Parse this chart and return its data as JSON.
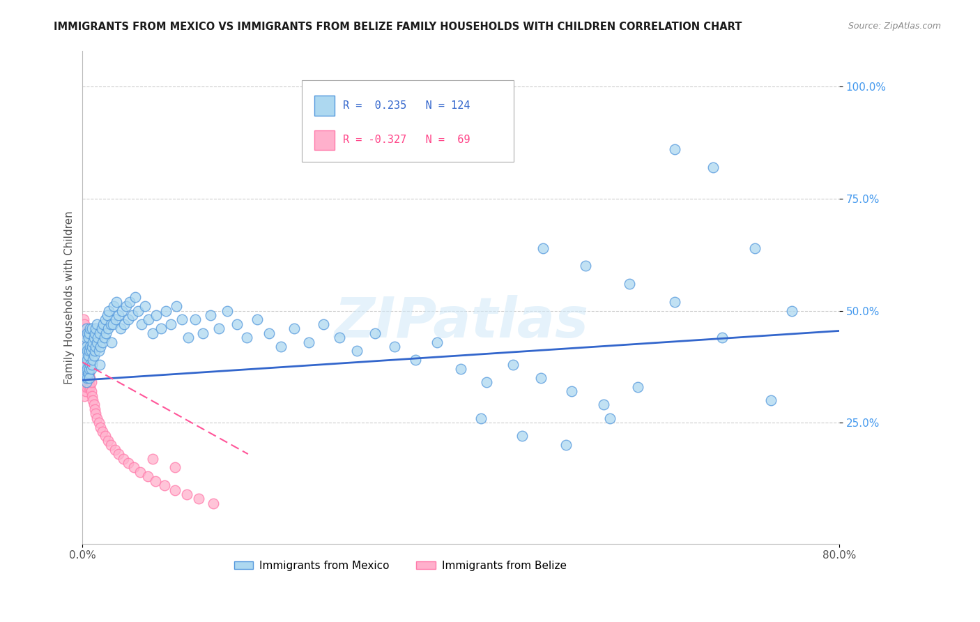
{
  "title": "IMMIGRANTS FROM MEXICO VS IMMIGRANTS FROM BELIZE FAMILY HOUSEHOLDS WITH CHILDREN CORRELATION CHART",
  "source": "Source: ZipAtlas.com",
  "ylabel": "Family Households with Children",
  "xlim": [
    0.0,
    0.8
  ],
  "ylim": [
    -0.02,
    1.08
  ],
  "mexico_R": 0.235,
  "mexico_N": 124,
  "belize_R": -0.327,
  "belize_N": 69,
  "mexico_color": "#ADD8F0",
  "mexico_edge": "#5599DD",
  "belize_color": "#FFB0CC",
  "belize_edge": "#FF7AAA",
  "trendline_mexico_color": "#3366CC",
  "trendline_belize_color": "#FF5599",
  "trendline_belize_dash": [
    6,
    3
  ],
  "watermark": "ZIPatlas",
  "mexico_trend_x0": 0.0,
  "mexico_trend_y0": 0.345,
  "mexico_trend_x1": 0.8,
  "mexico_trend_y1": 0.455,
  "belize_trend_x0": 0.0,
  "belize_trend_y0": 0.385,
  "belize_trend_x1": 0.175,
  "belize_trend_y1": 0.18,
  "mexico_x": [
    0.001,
    0.001,
    0.002,
    0.002,
    0.002,
    0.003,
    0.003,
    0.003,
    0.003,
    0.004,
    0.004,
    0.004,
    0.004,
    0.005,
    0.005,
    0.005,
    0.005,
    0.005,
    0.006,
    0.006,
    0.006,
    0.007,
    0.007,
    0.007,
    0.007,
    0.008,
    0.008,
    0.008,
    0.009,
    0.009,
    0.01,
    0.01,
    0.01,
    0.011,
    0.011,
    0.012,
    0.012,
    0.013,
    0.013,
    0.014,
    0.014,
    0.015,
    0.015,
    0.016,
    0.017,
    0.018,
    0.018,
    0.019,
    0.02,
    0.021,
    0.022,
    0.023,
    0.024,
    0.025,
    0.026,
    0.027,
    0.028,
    0.03,
    0.031,
    0.032,
    0.033,
    0.035,
    0.036,
    0.038,
    0.04,
    0.042,
    0.044,
    0.046,
    0.048,
    0.05,
    0.053,
    0.056,
    0.059,
    0.062,
    0.066,
    0.07,
    0.074,
    0.078,
    0.083,
    0.088,
    0.093,
    0.099,
    0.105,
    0.112,
    0.119,
    0.127,
    0.135,
    0.144,
    0.153,
    0.163,
    0.174,
    0.185,
    0.197,
    0.21,
    0.224,
    0.239,
    0.255,
    0.272,
    0.29,
    0.309,
    0.33,
    0.352,
    0.375,
    0.4,
    0.427,
    0.455,
    0.485,
    0.517,
    0.551,
    0.587,
    0.626,
    0.667,
    0.711,
    0.487,
    0.532,
    0.578,
    0.626,
    0.676,
    0.728,
    0.421,
    0.465,
    0.511,
    0.558,
    0.75
  ],
  "mexico_y": [
    0.38,
    0.41,
    0.36,
    0.39,
    0.43,
    0.37,
    0.4,
    0.44,
    0.35,
    0.38,
    0.42,
    0.46,
    0.34,
    0.37,
    0.41,
    0.45,
    0.35,
    0.39,
    0.36,
    0.4,
    0.44,
    0.37,
    0.41,
    0.45,
    0.35,
    0.38,
    0.42,
    0.46,
    0.37,
    0.41,
    0.38,
    0.42,
    0.46,
    0.39,
    0.43,
    0.4,
    0.44,
    0.41,
    0.45,
    0.42,
    0.46,
    0.43,
    0.47,
    0.44,
    0.41,
    0.45,
    0.38,
    0.42,
    0.46,
    0.43,
    0.47,
    0.44,
    0.48,
    0.45,
    0.49,
    0.46,
    0.5,
    0.47,
    0.43,
    0.47,
    0.51,
    0.48,
    0.52,
    0.49,
    0.46,
    0.5,
    0.47,
    0.51,
    0.48,
    0.52,
    0.49,
    0.53,
    0.5,
    0.47,
    0.51,
    0.48,
    0.45,
    0.49,
    0.46,
    0.5,
    0.47,
    0.51,
    0.48,
    0.44,
    0.48,
    0.45,
    0.49,
    0.46,
    0.5,
    0.47,
    0.44,
    0.48,
    0.45,
    0.42,
    0.46,
    0.43,
    0.47,
    0.44,
    0.41,
    0.45,
    0.42,
    0.39,
    0.43,
    0.37,
    0.34,
    0.38,
    0.35,
    0.32,
    0.29,
    0.33,
    0.86,
    0.82,
    0.64,
    0.64,
    0.6,
    0.56,
    0.52,
    0.44,
    0.3,
    0.26,
    0.22,
    0.2,
    0.26,
    0.5
  ],
  "belize_x": [
    0.001,
    0.001,
    0.001,
    0.001,
    0.001,
    0.001,
    0.001,
    0.001,
    0.002,
    0.002,
    0.002,
    0.002,
    0.002,
    0.002,
    0.002,
    0.002,
    0.002,
    0.003,
    0.003,
    0.003,
    0.003,
    0.003,
    0.003,
    0.003,
    0.004,
    0.004,
    0.004,
    0.004,
    0.004,
    0.005,
    0.005,
    0.005,
    0.005,
    0.006,
    0.006,
    0.006,
    0.007,
    0.007,
    0.008,
    0.008,
    0.009,
    0.009,
    0.01,
    0.011,
    0.012,
    0.013,
    0.014,
    0.015,
    0.017,
    0.019,
    0.021,
    0.024,
    0.027,
    0.03,
    0.034,
    0.038,
    0.043,
    0.048,
    0.054,
    0.061,
    0.069,
    0.077,
    0.087,
    0.098,
    0.11,
    0.123,
    0.138,
    0.098,
    0.074
  ],
  "belize_y": [
    0.4,
    0.42,
    0.44,
    0.38,
    0.46,
    0.36,
    0.34,
    0.48,
    0.39,
    0.41,
    0.43,
    0.37,
    0.45,
    0.35,
    0.33,
    0.47,
    0.31,
    0.38,
    0.4,
    0.42,
    0.36,
    0.44,
    0.34,
    0.32,
    0.37,
    0.39,
    0.41,
    0.35,
    0.33,
    0.36,
    0.38,
    0.4,
    0.34,
    0.35,
    0.37,
    0.33,
    0.34,
    0.36,
    0.33,
    0.35,
    0.32,
    0.34,
    0.31,
    0.3,
    0.29,
    0.28,
    0.27,
    0.26,
    0.25,
    0.24,
    0.23,
    0.22,
    0.21,
    0.2,
    0.19,
    0.18,
    0.17,
    0.16,
    0.15,
    0.14,
    0.13,
    0.12,
    0.11,
    0.1,
    0.09,
    0.08,
    0.07,
    0.15,
    0.17
  ]
}
